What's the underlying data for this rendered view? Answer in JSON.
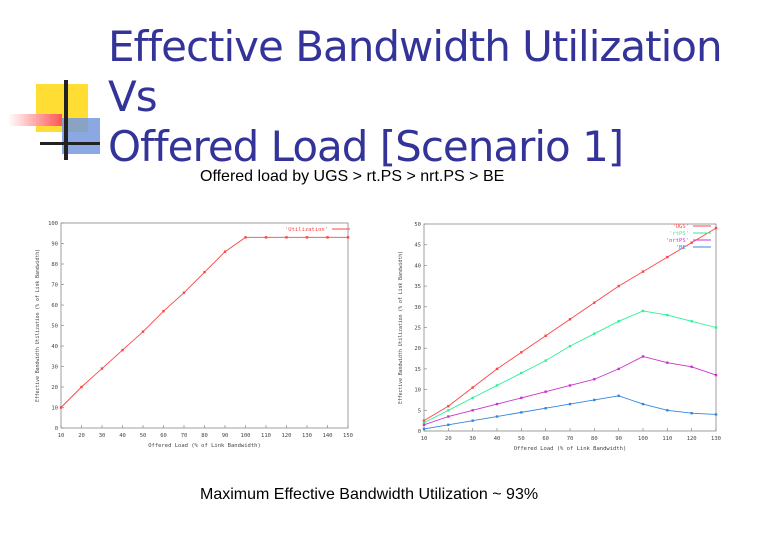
{
  "slide": {
    "title_line1": "Effective Bandwidth Utilization Vs",
    "title_line2": "Offered Load [Scenario 1]",
    "subtitle": "Offered load by UGS > rt.PS > nrt.PS > BE",
    "caption": "Maximum Effective Bandwidth Utilization ~ 93%"
  },
  "colors": {
    "title": "#333399",
    "deco_yellow": "#ffdd33",
    "deco_red": "#ff5555",
    "deco_blue": "#6688dd"
  },
  "chart_data": [
    {
      "type": "line",
      "xlabel": "Offered Load (% of Link Bandwidth)",
      "ylabel": "Effective Bandwidth Utilization (% of Link Bandwidth)",
      "xlim": [
        10,
        150
      ],
      "ylim": [
        0,
        100
      ],
      "xticks": [
        10,
        20,
        30,
        40,
        50,
        60,
        70,
        80,
        90,
        100,
        110,
        120,
        130,
        140,
        150
      ],
      "yticks": [
        0,
        10,
        20,
        30,
        40,
        50,
        60,
        70,
        80,
        90,
        100
      ],
      "legend_position": "top-right",
      "grid": false,
      "series": [
        {
          "name": "'Utilization'",
          "color": "#ff4444",
          "x": [
            10,
            20,
            30,
            40,
            50,
            60,
            70,
            80,
            90,
            100,
            110,
            120,
            130,
            140,
            150
          ],
          "y": [
            10,
            20,
            29,
            38,
            47,
            57,
            66,
            76,
            86,
            93,
            93,
            93,
            93,
            93,
            93
          ]
        }
      ]
    },
    {
      "type": "line",
      "xlabel": "Offered Load (% of Link Bandwidth)",
      "ylabel": "Effective Bandwidth Utilization (% of Link Bandwidth)",
      "xlim": [
        10,
        130
      ],
      "ylim": [
        0,
        50
      ],
      "xticks": [
        10,
        20,
        30,
        40,
        50,
        60,
        70,
        80,
        90,
        100,
        110,
        120,
        130
      ],
      "yticks": [
        0,
        5,
        10,
        15,
        20,
        25,
        30,
        35,
        40,
        45,
        50
      ],
      "legend_position": "top-right",
      "grid": false,
      "series": [
        {
          "name": "'UGS'",
          "color": "#ff4444",
          "x": [
            10,
            20,
            30,
            40,
            50,
            60,
            70,
            80,
            90,
            100,
            110,
            120,
            130
          ],
          "y": [
            2.5,
            6,
            10.5,
            15,
            19,
            23,
            27,
            31,
            35,
            38.5,
            42,
            45.5,
            49
          ]
        },
        {
          "name": "'rtPS'",
          "color": "#33ee99",
          "x": [
            10,
            20,
            30,
            40,
            50,
            60,
            70,
            80,
            90,
            100,
            110,
            120,
            130
          ],
          "y": [
            2,
            5,
            8,
            11,
            14,
            17,
            20.5,
            23.5,
            26.5,
            29,
            28,
            26.5,
            25
          ]
        },
        {
          "name": "'nrtPS'",
          "color": "#cc33cc",
          "x": [
            10,
            20,
            30,
            40,
            50,
            60,
            70,
            80,
            90,
            100,
            110,
            120,
            130
          ],
          "y": [
            1.5,
            3.5,
            5,
            6.5,
            8,
            9.5,
            11,
            12.5,
            15,
            18,
            16.5,
            15.5,
            13.5
          ]
        },
        {
          "name": "'BE'",
          "color": "#3388dd",
          "x": [
            10,
            20,
            30,
            40,
            50,
            60,
            70,
            80,
            90,
            100,
            110,
            120,
            130
          ],
          "y": [
            0.5,
            1.5,
            2.5,
            3.5,
            4.5,
            5.5,
            6.5,
            7.5,
            8.5,
            6.5,
            5,
            4.3,
            4
          ]
        }
      ]
    }
  ]
}
